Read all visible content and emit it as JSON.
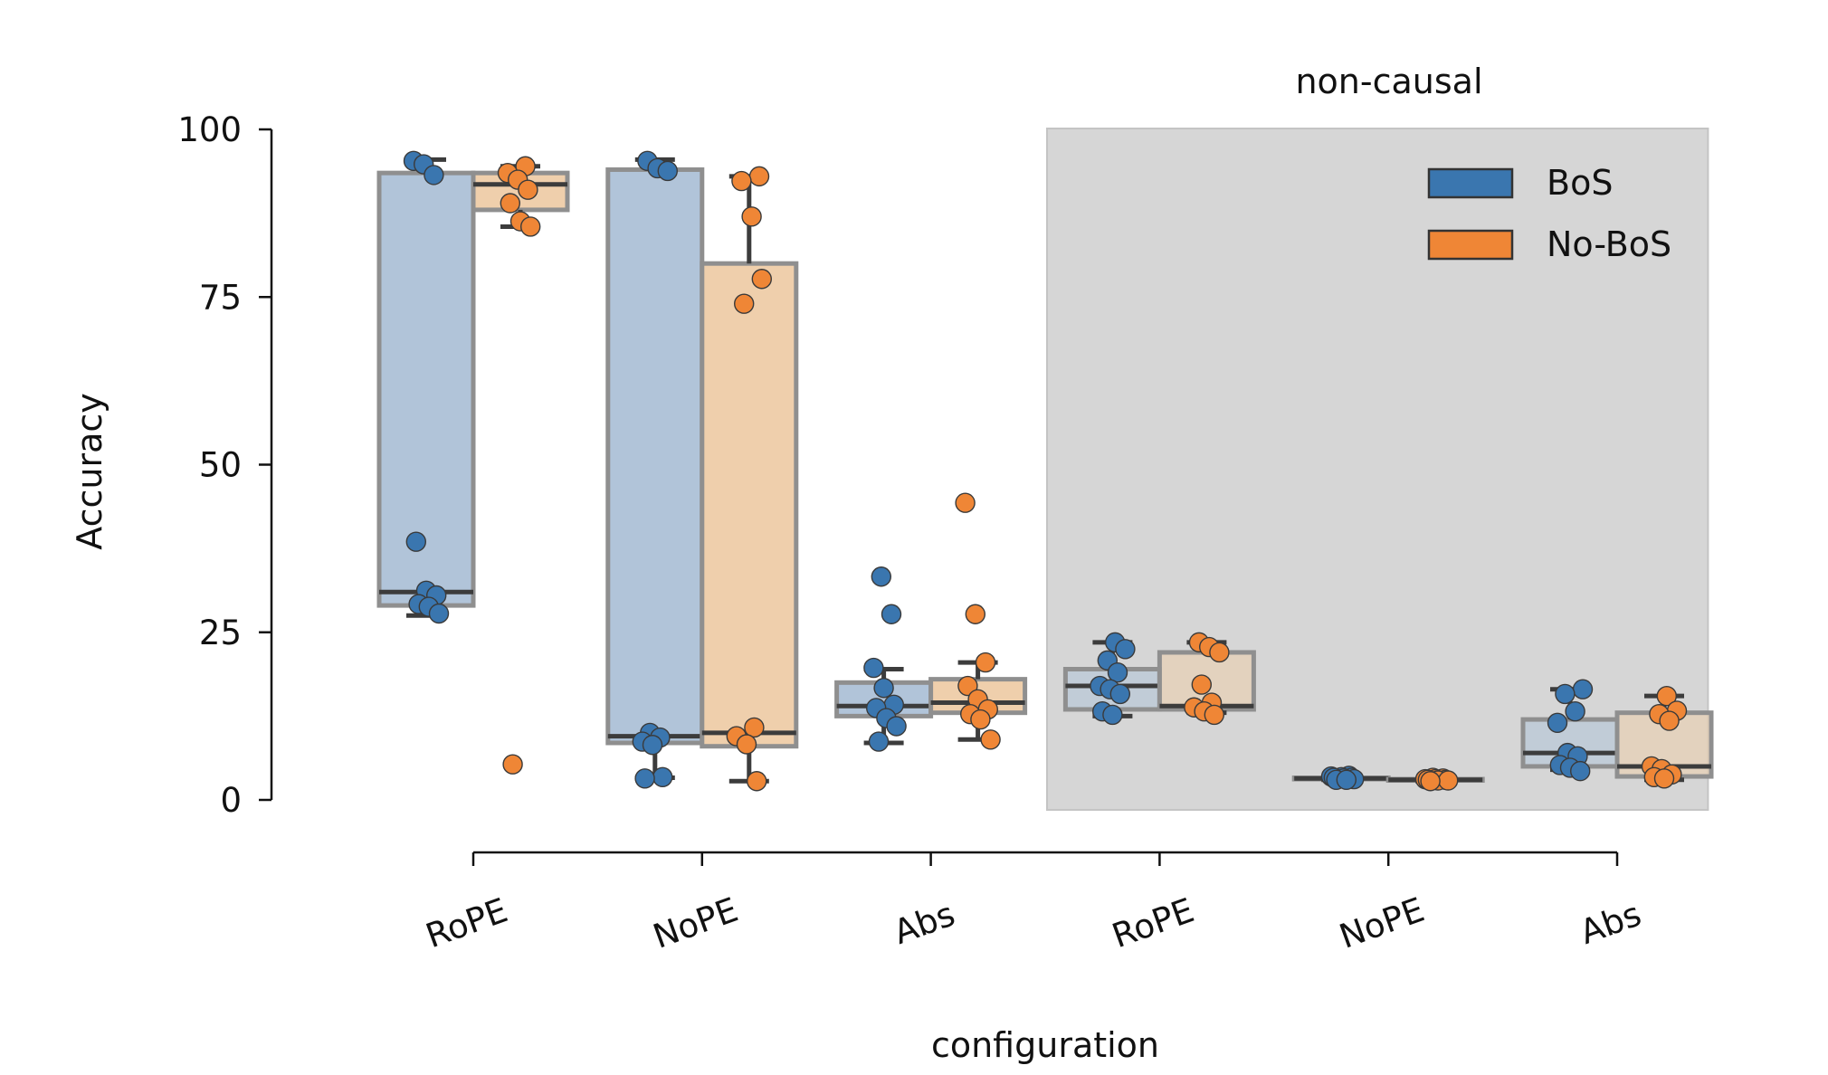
{
  "chart_data": {
    "type": "box",
    "title": "non-causal",
    "xlabel": "configuration",
    "ylabel": "Accuracy",
    "ylim": [
      0,
      100
    ],
    "yticks": [
      0,
      25,
      50,
      75,
      100
    ],
    "categories": [
      "RoPE",
      "NoPE",
      "Abs",
      "RoPE",
      "NoPE",
      "Abs"
    ],
    "shaded_region": {
      "from_category_index": 3,
      "to_category_index": 5,
      "color": "#d6d6d6"
    },
    "legend": {
      "position": "top-right",
      "entries": [
        "BoS",
        "No-BoS"
      ]
    },
    "series": [
      {
        "name": "BoS",
        "color": "#3a76af",
        "box_fill": "#b1c4d9",
        "boxes": [
          {
            "min": 27.5,
            "q1": 29,
            "median": 31,
            "q3": 93.5,
            "max": 95.5
          },
          {
            "min": 3.3,
            "q1": 8.5,
            "median": 9.5,
            "q3": 94,
            "max": 95.5
          },
          {
            "min": 8.5,
            "q1": 12.5,
            "median": 14,
            "q3": 17.5,
            "max": 19.5
          },
          {
            "min": 12.5,
            "q1": 13.5,
            "median": 17,
            "q3": 19.5,
            "max": 23.5
          },
          {
            "min": 3,
            "q1": 3.1,
            "median": 3.2,
            "q3": 3.3,
            "max": 3.5
          },
          {
            "min": 4.5,
            "q1": 5,
            "median": 7,
            "q3": 12,
            "max": 16.5
          }
        ],
        "points": [
          [
            95.3,
            94.8,
            93.2,
            38.5,
            31.2,
            30.5,
            29.2,
            28.8,
            27.8
          ],
          [
            95.3,
            94.2,
            93.8,
            10.0,
            9.3,
            8.7,
            8.2,
            3.4,
            3.2
          ],
          [
            33.3,
            27.7,
            19.7,
            16.7,
            14.2,
            13.7,
            12.2,
            11.0,
            8.7
          ],
          [
            23.5,
            22.5,
            20.8,
            19.0,
            17.0,
            16.5,
            15.8,
            13.2,
            12.7
          ],
          [
            3.6,
            3.5,
            3.4,
            3.3,
            3.3,
            3.2,
            3.1,
            3.0,
            3.0
          ],
          [
            16.5,
            15.8,
            13.2,
            11.5,
            7.0,
            6.5,
            5.2,
            4.8,
            4.3
          ]
        ]
      },
      {
        "name": "No-BoS",
        "color": "#ef8636",
        "box_fill": "#efcfac",
        "boxes": [
          {
            "min": 85.5,
            "q1": 88,
            "median": 91.8,
            "q3": 93.5,
            "max": 94.5
          },
          {
            "min": 2.8,
            "q1": 8,
            "median": 10,
            "q3": 80,
            "max": 93
          },
          {
            "min": 9,
            "q1": 13,
            "median": 14.5,
            "q3": 18,
            "max": 20.5
          },
          {
            "min": 13,
            "q1": 13.5,
            "median": 14,
            "q3": 22,
            "max": 23.5
          },
          {
            "min": 2.8,
            "q1": 2.9,
            "median": 3,
            "q3": 3.1,
            "max": 3.2
          },
          {
            "min": 3,
            "q1": 3.5,
            "median": 5,
            "q3": 13,
            "max": 15.5
          }
        ],
        "points": [
          [
            94.5,
            93.5,
            92.5,
            91.0,
            89.0,
            86.3,
            85.5,
            5.3
          ],
          [
            93.0,
            92.3,
            87.0,
            77.7,
            74.0,
            10.8,
            9.5,
            8.3,
            2.8
          ],
          [
            44.3,
            27.7,
            20.5,
            17.0,
            15.0,
            13.5,
            12.8,
            12.0,
            9.0
          ],
          [
            23.5,
            22.8,
            22.0,
            17.2,
            14.5,
            13.8,
            13.2,
            12.7
          ],
          [
            3.3,
            3.2,
            3.1,
            3.1,
            3.0,
            3.0,
            2.9,
            2.9,
            2.8
          ],
          [
            15.5,
            13.3,
            12.8,
            11.8,
            5.0,
            4.6,
            3.8,
            3.4,
            3.2
          ]
        ]
      }
    ]
  }
}
